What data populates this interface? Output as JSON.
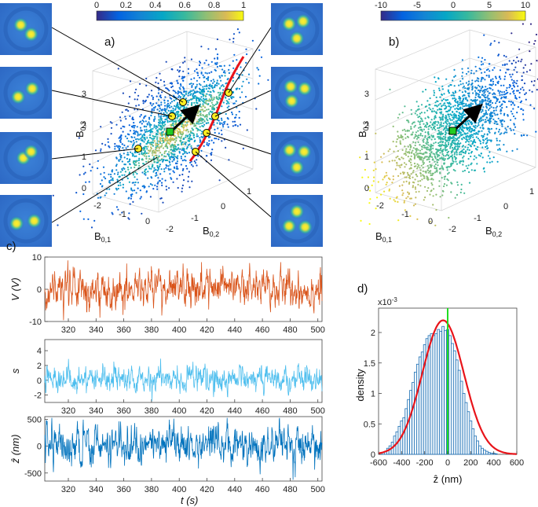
{
  "chart_data": [
    {
      "id": "a",
      "type": "scatter3d",
      "panel_label": "a)",
      "xlabel": "B",
      "xlabel_sub": "0,1",
      "ylabel": "B",
      "ylabel_sub": "0,2",
      "zlabel": "B",
      "zlabel_sub": "0,3",
      "x_ticks": [
        "-2",
        "-1",
        "0"
      ],
      "y_ticks": [
        "-2",
        "-1",
        "0",
        "1"
      ],
      "z_ticks": [
        "0",
        "1",
        "2",
        "3"
      ],
      "colorbar": {
        "min": 0,
        "max": 1,
        "ticks": [
          "0",
          "0.2",
          "0.4",
          "0.6",
          "0.8",
          "1"
        ],
        "colormap": "parula"
      },
      "curve_color": "#e8141a",
      "marker_center": "green square",
      "markers_yellow": 8,
      "inset_images": 8
    },
    {
      "id": "b",
      "type": "scatter3d",
      "panel_label": "b)",
      "xlabel": "B",
      "xlabel_sub": "0,1",
      "ylabel": "B",
      "ylabel_sub": "0,2",
      "zlabel": "B",
      "zlabel_sub": "0,3",
      "x_ticks": [
        "-2",
        "-1",
        "0"
      ],
      "y_ticks": [
        "-2",
        "-1",
        "0",
        "1"
      ],
      "z_ticks": [
        "0",
        "1",
        "2",
        "3"
      ],
      "colorbar": {
        "min": -10,
        "max": 10,
        "ticks": [
          "-10",
          "-5",
          "0",
          "5",
          "10"
        ],
        "colormap": "parula"
      }
    },
    {
      "id": "c",
      "type": "line",
      "panel_label": "c)",
      "xlabel": "t (s)",
      "x_range": [
        303,
        503
      ],
      "x_ticks": [
        "320",
        "340",
        "360",
        "380",
        "400",
        "420",
        "440",
        "460",
        "480",
        "500"
      ],
      "series": [
        {
          "name": "V(V)",
          "ylabel": "V (V)",
          "ylim": [
            -10,
            10
          ],
          "y_ticks": [
            "-10",
            "0",
            "10"
          ],
          "color": "#d95319"
        },
        {
          "name": "s",
          "ylabel": "s",
          "ylim": [
            -3,
            5.5
          ],
          "y_ticks": [
            "-2",
            "0",
            "2",
            "4"
          ],
          "color": "#4dbeee"
        },
        {
          "name": "z_hat",
          "ylabel": "ẑ (nm)",
          "ylim": [
            -650,
            550
          ],
          "y_ticks": [
            "-500",
            "0",
            "500"
          ],
          "color": "#0072bd"
        }
      ]
    },
    {
      "id": "d",
      "type": "histogram",
      "panel_label": "d)",
      "xlabel": "ẑ (nm)",
      "ylabel": "density",
      "exponent_label": "x10",
      "exponent_value": "-3",
      "x_range": [
        -600,
        600
      ],
      "y_range": [
        0,
        0.0024
      ],
      "x_ticks": [
        "-600",
        "-400",
        "-200",
        "0",
        "200",
        "400",
        "600"
      ],
      "y_ticks": [
        "0",
        "0.5",
        "1",
        "1.5",
        "2"
      ],
      "fit": {
        "type": "gaussian",
        "mean": -40,
        "std": 180,
        "peak": 0.0022,
        "color": "#e8141a"
      },
      "marker_line": {
        "x": 0,
        "color": "#22dd22"
      },
      "bin_width": 20,
      "bins": [
        {
          "x": -580,
          "y": 2e-05
        },
        {
          "x": -560,
          "y": 3e-05
        },
        {
          "x": -540,
          "y": 5e-05
        },
        {
          "x": -520,
          "y": 0.0001
        },
        {
          "x": -500,
          "y": 0.00014
        },
        {
          "x": -480,
          "y": 0.0002
        },
        {
          "x": -460,
          "y": 0.0003
        },
        {
          "x": -440,
          "y": 0.00037
        },
        {
          "x": -420,
          "y": 0.00046
        },
        {
          "x": -400,
          "y": 0.00055
        },
        {
          "x": -380,
          "y": 0.0006
        },
        {
          "x": -360,
          "y": 0.00075
        },
        {
          "x": -340,
          "y": 0.0009
        },
        {
          "x": -320,
          "y": 0.00105
        },
        {
          "x": -300,
          "y": 0.00118
        },
        {
          "x": -280,
          "y": 0.00135
        },
        {
          "x": -260,
          "y": 0.00148
        },
        {
          "x": -240,
          "y": 0.0016
        },
        {
          "x": -220,
          "y": 0.00168
        },
        {
          "x": -200,
          "y": 0.0018
        },
        {
          "x": -180,
          "y": 0.0019
        },
        {
          "x": -160,
          "y": 0.00195
        },
        {
          "x": -140,
          "y": 0.00198
        },
        {
          "x": -120,
          "y": 0.00195
        },
        {
          "x": -100,
          "y": 0.00198
        },
        {
          "x": -80,
          "y": 0.00205
        },
        {
          "x": -60,
          "y": 0.00202
        },
        {
          "x": -40,
          "y": 0.0021
        },
        {
          "x": -20,
          "y": 0.00203
        },
        {
          "x": 0,
          "y": 0.00205
        },
        {
          "x": 20,
          "y": 0.00195
        },
        {
          "x": 40,
          "y": 0.00182
        },
        {
          "x": 60,
          "y": 0.0017
        },
        {
          "x": 80,
          "y": 0.00155
        },
        {
          "x": 100,
          "y": 0.00138
        },
        {
          "x": 120,
          "y": 0.0012
        },
        {
          "x": 140,
          "y": 0.001
        },
        {
          "x": 160,
          "y": 0.00085
        },
        {
          "x": 180,
          "y": 0.0007
        },
        {
          "x": 200,
          "y": 0.00055
        },
        {
          "x": 220,
          "y": 0.00042
        },
        {
          "x": 240,
          "y": 0.0003
        },
        {
          "x": 260,
          "y": 0.00022
        },
        {
          "x": 280,
          "y": 0.00014
        },
        {
          "x": 300,
          "y": 0.0001
        },
        {
          "x": 320,
          "y": 7e-05
        },
        {
          "x": 340,
          "y": 5e-05
        },
        {
          "x": 360,
          "y": 3e-05
        },
        {
          "x": 380,
          "y": 2e-05
        },
        {
          "x": 400,
          "y": 2e-05
        },
        {
          "x": 420,
          "y": 1e-05
        }
      ]
    }
  ]
}
